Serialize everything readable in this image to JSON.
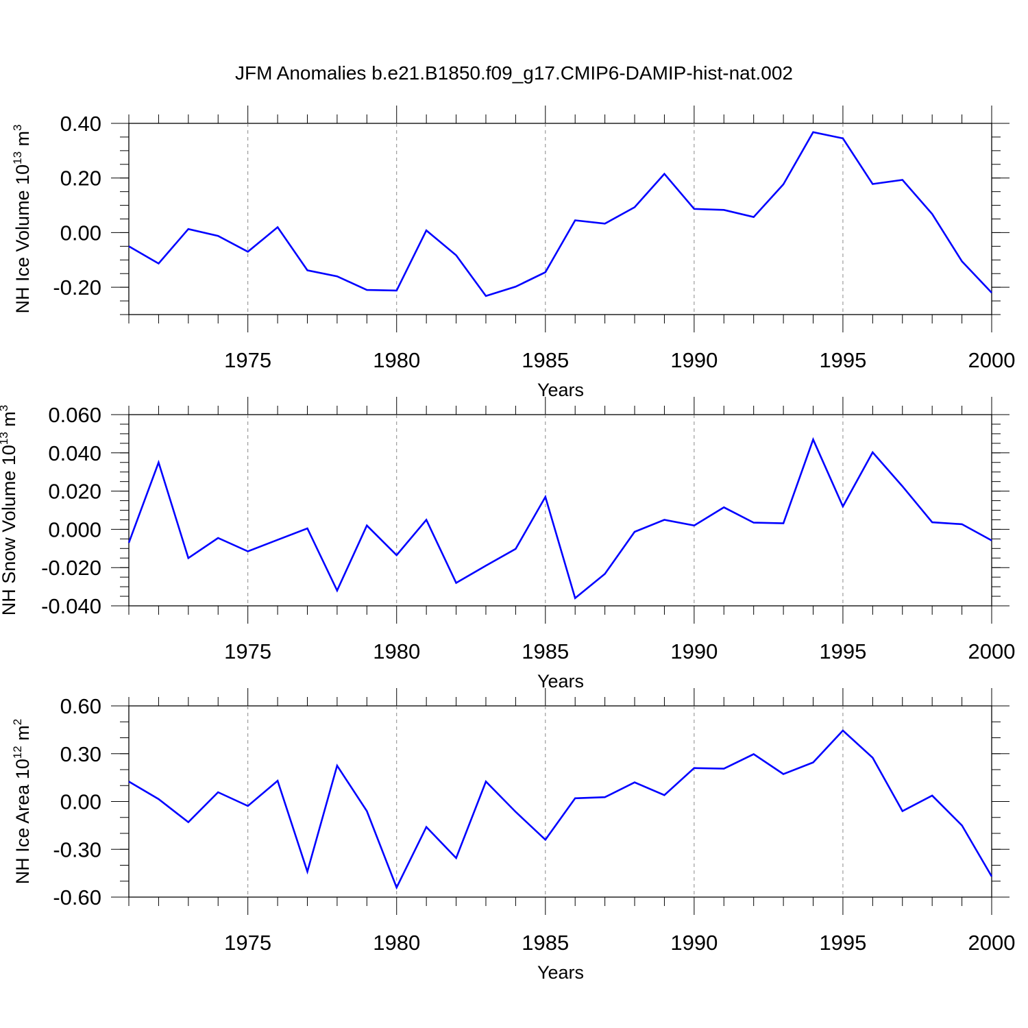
{
  "title": "JFM Anomalies b.e21.B1850.f09_g17.CMIP6-DAMIP-hist-nat.002",
  "line_color": "#0000ff",
  "chart_data": [
    {
      "type": "line",
      "title": "JFM Anomalies b.e21.B1850.f09_g17.CMIP6-DAMIP-hist-nat.002",
      "xlabel": "Years",
      "ylabel": {
        "text": "NH Ice Volume 10",
        "sup1": "13",
        "unit": " m",
        "sup2": "3"
      },
      "xlim": [
        1971,
        2000
      ],
      "ylim": [
        -0.3,
        0.4
      ],
      "xticks": [
        1975,
        1980,
        1985,
        1990,
        1995,
        2000
      ],
      "xtick_labels": [
        "1975",
        "1980",
        "1985",
        "1990",
        "1995",
        "2000"
      ],
      "yticks": [
        -0.2,
        0.0,
        0.2,
        0.4
      ],
      "ytick_labels": [
        "-0.20",
        "0.00",
        "0.20",
        "0.40"
      ],
      "yminor_step": 0.05,
      "x": [
        1971,
        1972,
        1973,
        1974,
        1975,
        1976,
        1977,
        1978,
        1979,
        1980,
        1981,
        1982,
        1983,
        1984,
        1985,
        1986,
        1987,
        1988,
        1989,
        1990,
        1991,
        1992,
        1993,
        1994,
        1995,
        1996,
        1997,
        1998,
        1999,
        2000
      ],
      "values": [
        -0.05,
        -0.113,
        0.013,
        -0.012,
        -0.07,
        0.02,
        -0.138,
        -0.16,
        -0.21,
        -0.212,
        0.008,
        -0.083,
        -0.232,
        -0.198,
        -0.145,
        0.045,
        0.033,
        0.093,
        0.215,
        0.087,
        0.083,
        0.057,
        0.177,
        0.368,
        0.345,
        0.178,
        0.193,
        0.068,
        -0.105,
        -0.22
      ]
    },
    {
      "type": "line",
      "xlabel": "Years",
      "ylabel": {
        "text": "NH Snow Volume 10",
        "sup1": "13",
        "unit": " m",
        "sup2": "3"
      },
      "xlim": [
        1971,
        2000
      ],
      "ylim": [
        -0.04,
        0.06
      ],
      "xticks": [
        1975,
        1980,
        1985,
        1990,
        1995,
        2000
      ],
      "xtick_labels": [
        "1975",
        "1980",
        "1985",
        "1990",
        "1995",
        "2000"
      ],
      "yticks": [
        -0.04,
        -0.02,
        0.0,
        0.02,
        0.04,
        0.06
      ],
      "ytick_labels": [
        "-0.040",
        "-0.020",
        "0.000",
        "0.020",
        "0.040",
        "0.060"
      ],
      "yminor_step": 0.005,
      "x": [
        1971,
        1972,
        1973,
        1974,
        1975,
        1976,
        1977,
        1978,
        1979,
        1980,
        1981,
        1982,
        1983,
        1984,
        1985,
        1986,
        1987,
        1988,
        1989,
        1990,
        1991,
        1992,
        1993,
        1994,
        1995,
        1996,
        1997,
        1998,
        1999,
        2000
      ],
      "values": [
        -0.007,
        0.035,
        -0.015,
        -0.0045,
        -0.0115,
        -0.0055,
        0.0005,
        -0.032,
        0.002,
        -0.0135,
        0.005,
        -0.028,
        -0.019,
        -0.0102,
        0.017,
        -0.036,
        -0.0233,
        -0.0013,
        0.005,
        0.002,
        0.0115,
        0.0035,
        0.0032,
        0.047,
        0.012,
        0.0403,
        0.0225,
        0.0037,
        0.0027,
        -0.0058
      ]
    },
    {
      "type": "line",
      "xlabel": "Years",
      "ylabel": {
        "text": "NH Ice Area 10",
        "sup1": "12",
        "unit": " m",
        "sup2": "2"
      },
      "xlim": [
        1971,
        2000
      ],
      "ylim": [
        -0.6,
        0.6
      ],
      "xticks": [
        1975,
        1980,
        1985,
        1990,
        1995,
        2000
      ],
      "xtick_labels": [
        "1975",
        "1980",
        "1985",
        "1990",
        "1995",
        "2000"
      ],
      "yticks": [
        -0.6,
        -0.3,
        0.0,
        0.3,
        0.6
      ],
      "ytick_labels": [
        "-0.60",
        "-0.30",
        "0.00",
        "0.30",
        "0.60"
      ],
      "yminor_step": 0.1,
      "x": [
        1971,
        1972,
        1973,
        1974,
        1975,
        1976,
        1977,
        1978,
        1979,
        1980,
        1981,
        1982,
        1983,
        1984,
        1985,
        1986,
        1987,
        1988,
        1989,
        1990,
        1991,
        1992,
        1993,
        1994,
        1995,
        1996,
        1997,
        1998,
        1999,
        2000
      ],
      "values": [
        0.125,
        0.015,
        -0.13,
        0.058,
        -0.028,
        0.13,
        -0.44,
        0.225,
        -0.06,
        -0.54,
        -0.16,
        -0.355,
        0.125,
        -0.065,
        -0.24,
        0.02,
        0.027,
        0.12,
        0.04,
        0.21,
        0.206,
        0.297,
        0.172,
        0.245,
        0.445,
        0.275,
        -0.06,
        0.037,
        -0.15,
        -0.47
      ]
    }
  ]
}
